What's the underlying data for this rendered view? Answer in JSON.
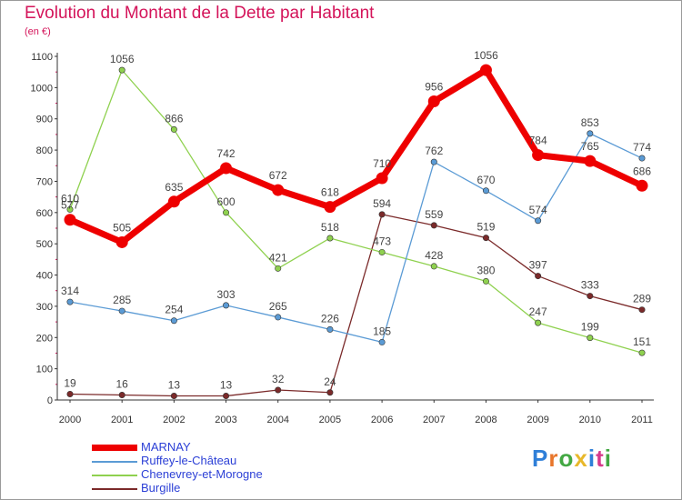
{
  "title": "Evolution du Montant de la Dette par Habitant",
  "subtitle": "(en €)",
  "logo": "Proxiti",
  "chart_data": {
    "type": "line",
    "title": "Evolution du Montant de la Dette par Habitant",
    "ylabel": "(en €)",
    "xlabel": "",
    "x": [
      "2000",
      "2001",
      "2002",
      "2003",
      "2004",
      "2005",
      "2006",
      "2007",
      "2008",
      "2009",
      "2010",
      "2011"
    ],
    "ylim": [
      0,
      1100
    ],
    "yticks": [
      0,
      100,
      200,
      300,
      400,
      500,
      600,
      700,
      800,
      900,
      1000,
      1100
    ],
    "grid": false,
    "legend": "bottom-left",
    "series": [
      {
        "name": "MARNAY",
        "color": "#ee0000",
        "values": [
          577,
          505,
          635,
          742,
          672,
          618,
          710,
          956,
          1056,
          784,
          765,
          686
        ]
      },
      {
        "name": "Ruffey-le-Château",
        "color": "#5b9bd5",
        "values": [
          314,
          285,
          254,
          303,
          265,
          226,
          185,
          762,
          670,
          574,
          853,
          774
        ]
      },
      {
        "name": "Chenevrey-et-Morogne",
        "color": "#8fd14f",
        "values": [
          610,
          1056,
          866,
          600,
          421,
          518,
          473,
          428,
          380,
          247,
          199,
          151
        ]
      },
      {
        "name": "Burgille",
        "color": "#7b2a2a",
        "values": [
          19,
          16,
          13,
          13,
          32,
          24,
          594,
          559,
          519,
          397,
          333,
          289
        ]
      }
    ]
  }
}
